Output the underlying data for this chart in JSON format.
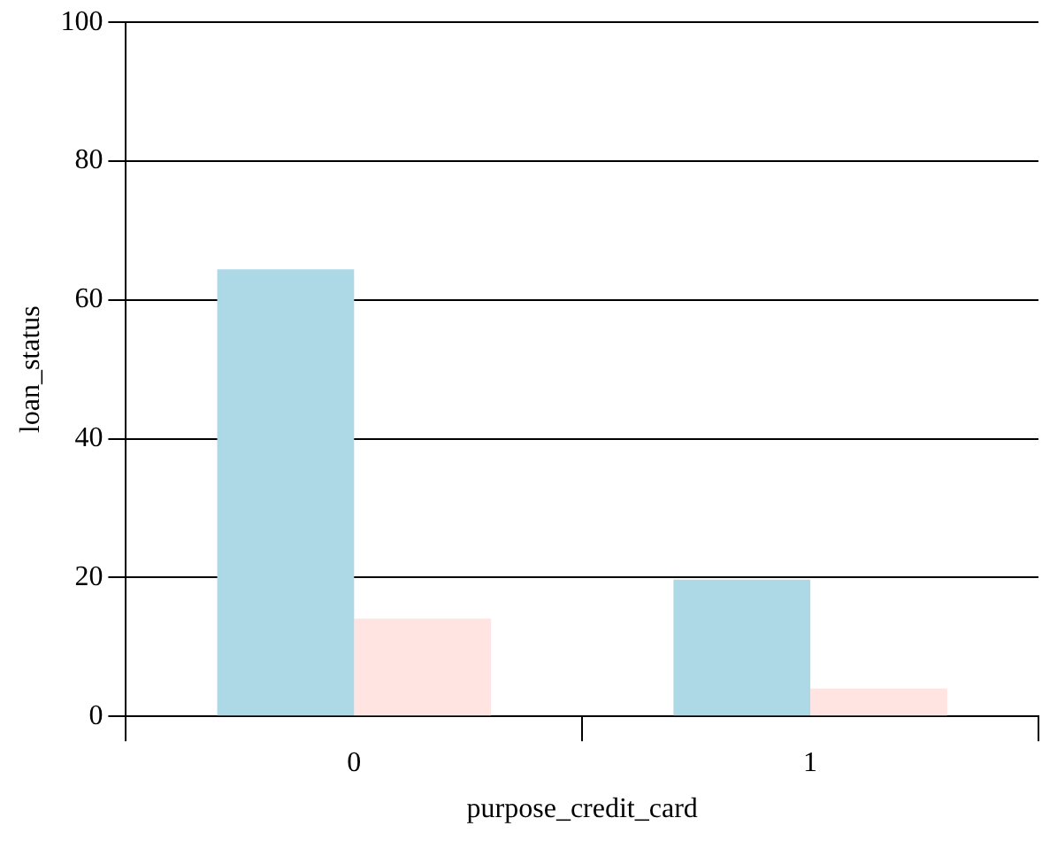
{
  "chart_data": {
    "type": "bar",
    "xlabel": "purpose_credit_card",
    "ylabel": "loan_status",
    "categories": [
      "0",
      "1"
    ],
    "series": [
      {
        "color": "#add8e6",
        "values": [
          64.4,
          19.7
        ]
      },
      {
        "color": "#ffe4e1",
        "values": [
          14.1,
          4.0
        ]
      }
    ],
    "ylim": [
      0,
      100
    ],
    "yticks": [
      0,
      20,
      40,
      60,
      80,
      100
    ],
    "grid": "y",
    "legend": false
  }
}
